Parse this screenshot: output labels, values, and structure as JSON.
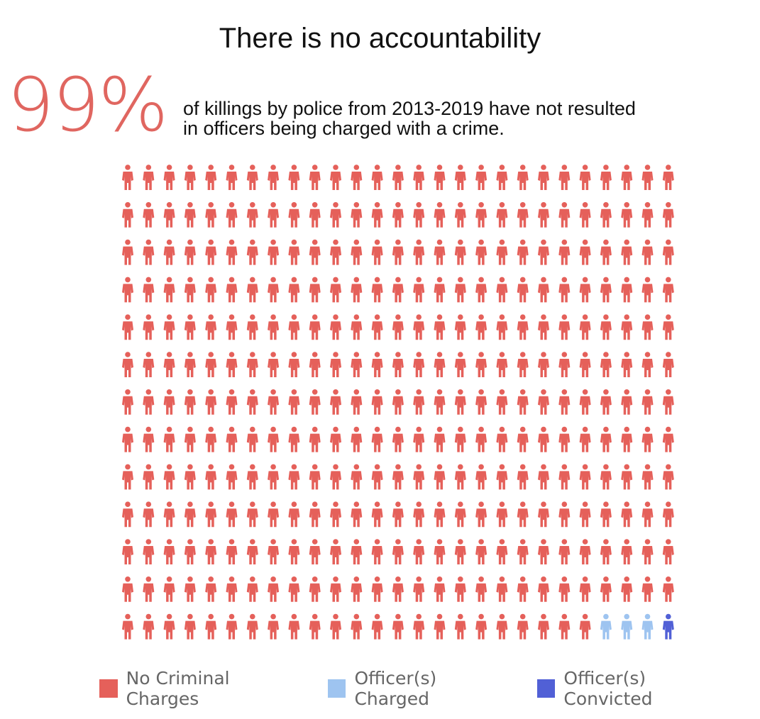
{
  "header": {
    "title": "There is no accountability",
    "big_stat": "99%",
    "caption_line1": "of killings by police from 2013-2019 have not resulted",
    "caption_line2": "in officers being charged with a crime."
  },
  "colors": {
    "no_charges": "#e5605a",
    "charged": "#9ec4f0",
    "convicted": "#5160d6",
    "big_stat": "#e06660"
  },
  "icon": "person-icon",
  "chart_data": {
    "type": "waffle",
    "rows": 13,
    "columns": 27,
    "categories": [
      "No Criminal Charges",
      "Officer(s) Charged",
      "Officer(s) Convicted"
    ],
    "values": [
      347,
      3,
      1
    ],
    "total": 351,
    "fill_order": "row-major from top-left; special categories occupy the last cells of the bottom row",
    "legend": [
      {
        "label": "No Criminal Charges",
        "color": "#e5605a"
      },
      {
        "label": "Officer(s) Charged",
        "color": "#9ec4f0"
      },
      {
        "label": "Officer(s) Convicted",
        "color": "#5160d6"
      }
    ],
    "legend_position": "bottom"
  }
}
